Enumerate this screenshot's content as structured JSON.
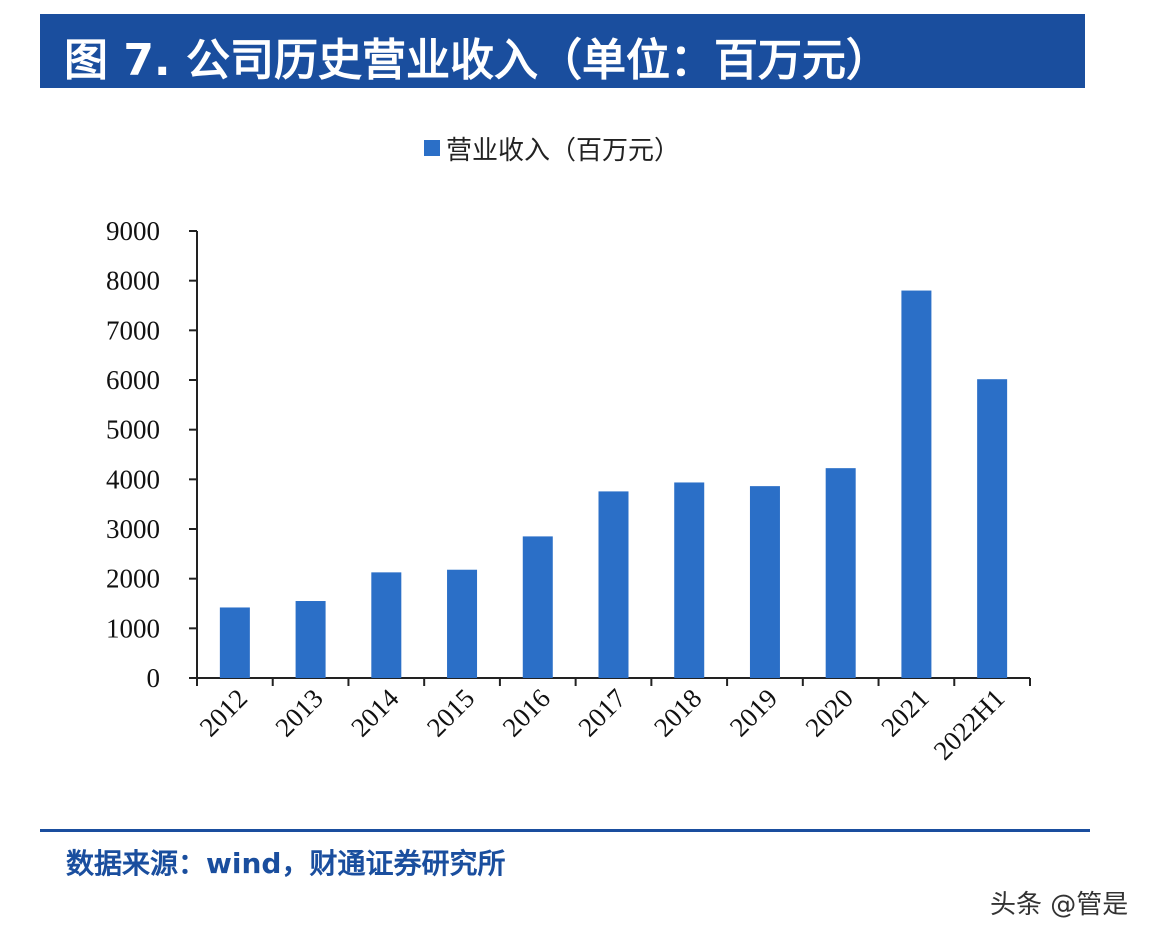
{
  "header": {
    "title": "图 7. 公司历史营业收入（单位：百万元）"
  },
  "chart_data": {
    "type": "bar",
    "title": "",
    "categories": [
      "2012",
      "2013",
      "2014",
      "2015",
      "2016",
      "2017",
      "2018",
      "2019",
      "2020",
      "2021",
      "2022H1"
    ],
    "series": [
      {
        "name": "营业收入（百万元）",
        "values": [
          1420,
          1550,
          2127,
          2180,
          2851,
          3757,
          3937,
          3863,
          4225,
          7801,
          6016
        ],
        "color": "#2b6fc7"
      }
    ],
    "xlabel": "",
    "ylabel": "",
    "ylim": [
      0,
      9000
    ],
    "yticks": [
      0,
      1000,
      2000,
      3000,
      4000,
      5000,
      6000,
      7000,
      8000,
      9000
    ],
    "grid": false,
    "legend": "top-center"
  },
  "footer": {
    "source": "数据来源：wind，财通证券研究所",
    "watermark": "头条 @管是"
  },
  "colors": {
    "brand": "#1a4e9e",
    "bar": "#2b6fc7"
  }
}
